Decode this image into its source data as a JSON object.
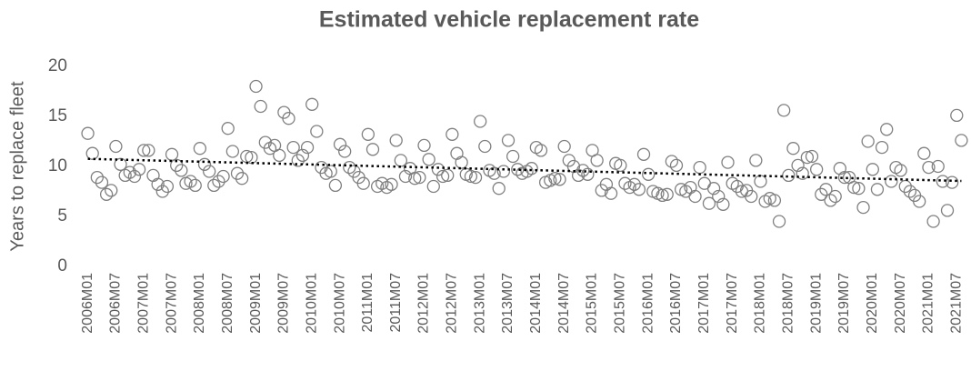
{
  "chart_data": {
    "type": "scatter",
    "title": "Estimated vehicle replacement rate",
    "y_label": "Years to replace fleet",
    "categories": [
      "2006M01",
      null,
      null,
      null,
      null,
      null,
      "2006M07",
      null,
      null,
      null,
      null,
      null,
      "2007M01",
      null,
      null,
      null,
      null,
      null,
      "2007M07",
      null,
      null,
      null,
      null,
      null,
      "2008M01",
      null,
      null,
      null,
      null,
      null,
      "2008M07",
      null,
      null,
      null,
      null,
      null,
      "2009M01",
      null,
      null,
      null,
      null,
      null,
      "2009M07",
      null,
      null,
      null,
      null,
      null,
      "2010M01",
      null,
      null,
      null,
      null,
      null,
      "2010M07",
      null,
      null,
      null,
      null,
      null,
      "2011M01",
      null,
      null,
      null,
      null,
      null,
      "2011M07",
      null,
      null,
      null,
      null,
      null,
      "2012M01",
      null,
      null,
      null,
      null,
      null,
      "2012M07",
      null,
      null,
      null,
      null,
      null,
      "2013M01",
      null,
      null,
      null,
      null,
      null,
      "2013M07",
      null,
      null,
      null,
      null,
      null,
      "2014M01",
      null,
      null,
      null,
      null,
      null,
      "2014M07",
      null,
      null,
      null,
      null,
      null,
      "2015M01",
      null,
      null,
      null,
      null,
      null,
      "2015M07",
      null,
      null,
      null,
      null,
      null,
      "2016M01",
      null,
      null,
      null,
      null,
      null,
      "2016M07",
      null,
      null,
      null,
      null,
      null,
      "2017M01",
      null,
      null,
      null,
      null,
      null,
      "2017M07",
      null,
      null,
      null,
      null,
      null,
      "2018M01",
      null,
      null,
      null,
      null,
      null,
      "2018M07",
      null,
      null,
      null,
      null,
      null,
      "2019M01",
      null,
      null,
      null,
      null,
      null,
      "2019M07",
      null,
      null,
      null,
      null,
      null,
      "2020M01",
      null,
      null,
      null,
      null,
      null,
      "2020M07",
      null,
      null,
      null,
      null,
      null,
      "2021M01",
      null,
      null,
      null,
      null,
      null,
      "2021M07",
      null
    ],
    "values": [
      13.3,
      11.3,
      8.9,
      8.4,
      7.2,
      7.6,
      12.0,
      10.2,
      9.1,
      9.4,
      9.0,
      9.7,
      11.6,
      11.6,
      9.1,
      8.2,
      7.5,
      8.0,
      11.2,
      10.1,
      9.6,
      8.3,
      8.5,
      8.1,
      11.8,
      10.2,
      9.5,
      8.1,
      8.5,
      9.0,
      13.8,
      11.5,
      9.3,
      8.8,
      11.0,
      10.9,
      18.0,
      16.0,
      12.4,
      11.8,
      12.1,
      11.1,
      15.4,
      14.8,
      11.9,
      10.6,
      11.1,
      11.9,
      16.2,
      13.5,
      9.9,
      9.3,
      9.5,
      8.1,
      12.2,
      11.5,
      9.9,
      9.5,
      8.9,
      8.3,
      13.2,
      11.7,
      8.0,
      8.3,
      7.9,
      8.2,
      12.6,
      10.6,
      9.0,
      9.8,
      8.8,
      8.9,
      12.1,
      10.7,
      8.0,
      9.7,
      9.0,
      9.1,
      13.2,
      11.3,
      10.4,
      9.2,
      9.0,
      8.9,
      14.5,
      12.0,
      9.6,
      9.3,
      7.8,
      9.5,
      12.6,
      11.0,
      9.7,
      9.3,
      9.5,
      9.8,
      11.9,
      11.6,
      8.4,
      8.6,
      8.8,
      8.7,
      12.0,
      10.6,
      10.0,
      9.1,
      9.6,
      9.2,
      11.6,
      10.6,
      7.6,
      8.2,
      7.3,
      10.3,
      10.1,
      8.3,
      7.9,
      8.2,
      7.7,
      11.2,
      9.2,
      7.5,
      7.3,
      7.1,
      7.2,
      10.5,
      10.1,
      7.7,
      7.5,
      7.9,
      7.0,
      9.9,
      8.3,
      6.3,
      7.8,
      7.0,
      6.2,
      10.4,
      8.3,
      8.0,
      7.5,
      7.6,
      7.0,
      10.6,
      8.5,
      6.5,
      6.8,
      6.6,
      4.5,
      15.6,
      9.1,
      11.8,
      10.1,
      9.3,
      10.9,
      11.0,
      9.7,
      7.2,
      7.7,
      6.6,
      7.0,
      9.8,
      8.9,
      8.9,
      7.9,
      7.8,
      5.9,
      12.5,
      9.7,
      7.7,
      11.9,
      13.7,
      8.5,
      9.9,
      9.6,
      8.0,
      7.5,
      7.1,
      6.5,
      11.3,
      9.9,
      4.5,
      10.0,
      8.5,
      5.6,
      8.4,
      15.1,
      12.6
    ],
    "color": "#808080",
    "trendline": "linear",
    "ylim": [
      0,
      20
    ],
    "yticks": [
      0,
      5,
      10,
      15,
      20
    ],
    "grid": false
  }
}
